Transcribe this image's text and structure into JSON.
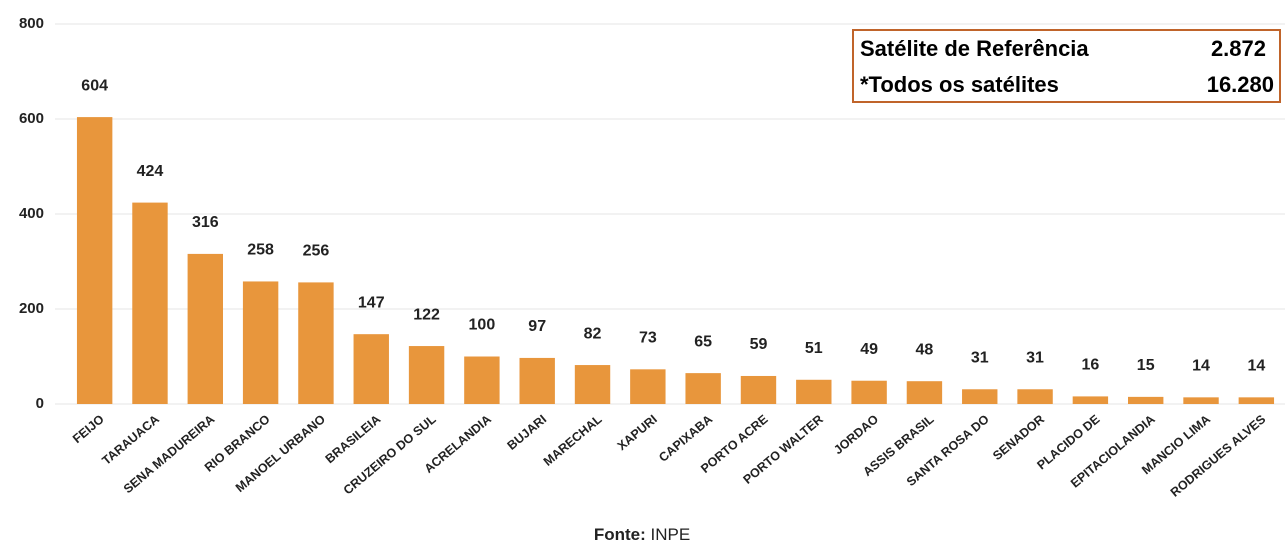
{
  "chart_data": {
    "type": "bar",
    "categories": [
      "FEIJO",
      "TARAUACA",
      "SENA MADUREIRA",
      "RIO BRANCO",
      "MANOEL URBANO",
      "BRASILEIA",
      "CRUZEIRO DO SUL",
      "ACRELANDIA",
      "BUJARI",
      "MARECHAL",
      "XAPURI",
      "CAPIXABA",
      "PORTO ACRE",
      "PORTO WALTER",
      "JORDAO",
      "ASSIS BRASIL",
      "SANTA ROSA DO",
      "SENADOR",
      "PLACIDO DE",
      "EPITACIOLANDIA",
      "MANCIO LIMA",
      "RODRIGUES ALVES"
    ],
    "values": [
      604,
      424,
      316,
      258,
      256,
      147,
      122,
      100,
      97,
      82,
      73,
      65,
      59,
      51,
      49,
      48,
      31,
      31,
      16,
      15,
      14,
      14
    ],
    "color": "#e8963c",
    "ylim": [
      0,
      800
    ],
    "yticks": [
      0,
      200,
      400,
      600,
      800
    ],
    "grid": true,
    "table": [
      [
        "Satélite de Referência",
        "2.872"
      ],
      [
        "*Todos os satélites",
        "16.280"
      ]
    ],
    "source_label": "Fonte:",
    "source": "INPE"
  }
}
